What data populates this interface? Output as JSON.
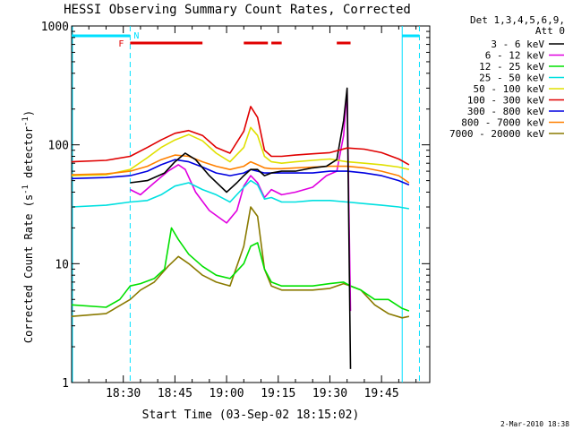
{
  "chart_data": {
    "type": "line",
    "title": "HESSI Observing Summary Count Rates, Corrected",
    "xlabel": "Start Time (03-Sep-02 18:15:02)",
    "ylabel": "Corrected Count Rate (s⁻¹ detector⁻¹)",
    "ylabel_main": "Corrected Count Rate (s",
    "ylabel_sup1": "-1",
    "ylabel_mid": " detector",
    "ylabel_sup2": "-1",
    "ylabel_end": ")",
    "footer": "2-Mar-2010 18:38",
    "yscale": "log",
    "ylim": [
      1,
      1000
    ],
    "xlim_min": [
      0,
      104
    ],
    "xtick_labels": [
      "18:30",
      "18:45",
      "19:00",
      "19:15",
      "19:30",
      "19:45"
    ],
    "xtick_minutes": [
      15,
      30,
      45,
      60,
      75,
      90
    ],
    "ytick_labels": [
      "1",
      "10",
      "100",
      "1000"
    ],
    "ytick_values": [
      1,
      10,
      100,
      1000
    ],
    "legend_header": [
      "Det 1,3,4,5,6,9,",
      "Att 0"
    ],
    "time_markers": [
      {
        "minute": 17,
        "label": "N",
        "color": "#00e0ff"
      },
      {
        "minute": 96,
        "label": "",
        "color": "#00e0ff"
      }
    ],
    "flag_letter_F": "F",
    "night_bars_minutes": [
      [
        0,
        17
      ],
      [
        96,
        101
      ]
    ],
    "flare_bars_minutes": [
      [
        17,
        38
      ],
      [
        50,
        57
      ],
      [
        58,
        61
      ],
      [
        77,
        81
      ]
    ],
    "series": [
      {
        "name": "3 - 6 keV",
        "color": "#000000",
        "minutes": [
          17,
          22,
          27,
          30,
          33,
          36,
          40,
          45,
          48,
          50,
          52,
          54,
          56,
          58,
          61,
          65,
          70,
          74,
          77,
          79,
          80,
          81
        ],
        "values": [
          48,
          50,
          58,
          72,
          85,
          75,
          55,
          40,
          48,
          55,
          62,
          62,
          55,
          58,
          60,
          60,
          64,
          66,
          75,
          160,
          300,
          1.3
        ]
      },
      {
        "name": "6 - 12 keV",
        "color": "#e000e0",
        "minutes": [
          17,
          20,
          24,
          28,
          31,
          33,
          36,
          40,
          45,
          48,
          50,
          52,
          54,
          56,
          58,
          61,
          65,
          70,
          74,
          77,
          79,
          80,
          81
        ],
        "values": [
          42,
          38,
          48,
          60,
          68,
          62,
          40,
          28,
          22,
          28,
          45,
          55,
          48,
          36,
          42,
          38,
          40,
          44,
          55,
          60,
          120,
          290,
          4
        ]
      },
      {
        "name": "12 - 25 keV",
        "color": "#00e000",
        "minutes": [
          0,
          10,
          14,
          17,
          20,
          24,
          27,
          29,
          31,
          34,
          38,
          42,
          46,
          50,
          52,
          54,
          56,
          58,
          61,
          65,
          70,
          75,
          79,
          81,
          84,
          88,
          92,
          96,
          98
        ],
        "values": [
          4.5,
          4.3,
          5.0,
          6.5,
          6.8,
          7.5,
          9.0,
          20,
          16,
          12,
          9.5,
          8.0,
          7.5,
          10,
          14,
          15,
          9.0,
          7.0,
          6.5,
          6.5,
          6.5,
          6.8,
          7.0,
          6.5,
          6.0,
          5.0,
          5.0,
          4.2,
          4.0
        ]
      },
      {
        "name": "25 - 50 keV",
        "color": "#00e0e0",
        "minutes": [
          0,
          10,
          17,
          22,
          26,
          30,
          34,
          38,
          42,
          46,
          50,
          52,
          54,
          56,
          58,
          61,
          65,
          70,
          75,
          80,
          85,
          90,
          95,
          98
        ],
        "values": [
          30,
          31,
          33,
          34,
          38,
          45,
          48,
          42,
          38,
          33,
          44,
          50,
          46,
          35,
          36,
          33,
          33,
          34,
          34,
          33,
          32,
          31,
          30,
          29
        ]
      },
      {
        "name": "50 - 100 keV",
        "color": "#e0e000",
        "minutes": [
          0,
          10,
          17,
          22,
          26,
          30,
          34,
          38,
          42,
          46,
          50,
          52,
          54,
          56,
          58,
          61,
          65,
          70,
          75,
          80,
          85,
          90,
          95,
          98
        ],
        "values": [
          55,
          56,
          62,
          78,
          95,
          110,
          122,
          108,
          85,
          72,
          95,
          140,
          120,
          80,
          72,
          70,
          72,
          74,
          76,
          72,
          70,
          68,
          65,
          62
        ]
      },
      {
        "name": "100 - 300 keV",
        "color": "#e00000",
        "minutes": [
          0,
          10,
          17,
          22,
          26,
          30,
          34,
          38,
          42,
          46,
          50,
          52,
          54,
          56,
          58,
          61,
          65,
          70,
          75,
          80,
          85,
          90,
          95,
          98
        ],
        "values": [
          72,
          74,
          80,
          95,
          110,
          125,
          132,
          120,
          95,
          85,
          130,
          210,
          170,
          90,
          80,
          80,
          82,
          84,
          86,
          94,
          92,
          86,
          76,
          68
        ]
      },
      {
        "name": "300 - 800 keV",
        "color": "#0000e0",
        "minutes": [
          0,
          10,
          17,
          22,
          26,
          30,
          34,
          38,
          42,
          46,
          50,
          52,
          54,
          56,
          58,
          61,
          65,
          70,
          75,
          80,
          85,
          90,
          95,
          98
        ],
        "values": [
          52,
          53,
          55,
          60,
          68,
          75,
          72,
          65,
          58,
          55,
          58,
          62,
          60,
          58,
          58,
          58,
          58,
          58,
          60,
          60,
          58,
          55,
          50,
          46
        ]
      },
      {
        "name": "800 - 7000 keV",
        "color": "#ff8000",
        "minutes": [
          0,
          10,
          17,
          22,
          26,
          30,
          34,
          38,
          42,
          46,
          50,
          52,
          54,
          56,
          58,
          61,
          65,
          70,
          75,
          80,
          85,
          90,
          95,
          98
        ],
        "values": [
          56,
          57,
          60,
          66,
          75,
          82,
          80,
          72,
          66,
          62,
          66,
          72,
          68,
          64,
          63,
          63,
          64,
          65,
          66,
          66,
          64,
          60,
          55,
          48
        ]
      },
      {
        "name": "7000 - 20000 keV",
        "color": "#8a7a00",
        "minutes": [
          0,
          10,
          17,
          20,
          24,
          28,
          31,
          34,
          38,
          42,
          46,
          50,
          52,
          54,
          56,
          58,
          61,
          65,
          70,
          75,
          79,
          81,
          84,
          88,
          92,
          96,
          98
        ],
        "values": [
          3.6,
          3.8,
          5.0,
          6.0,
          7.0,
          9.5,
          11.5,
          10,
          8.0,
          7.0,
          6.5,
          14,
          30,
          25,
          9.0,
          6.5,
          6.0,
          6.0,
          6.0,
          6.2,
          6.8,
          6.5,
          6.0,
          4.5,
          3.8,
          3.5,
          3.6
        ]
      }
    ]
  }
}
